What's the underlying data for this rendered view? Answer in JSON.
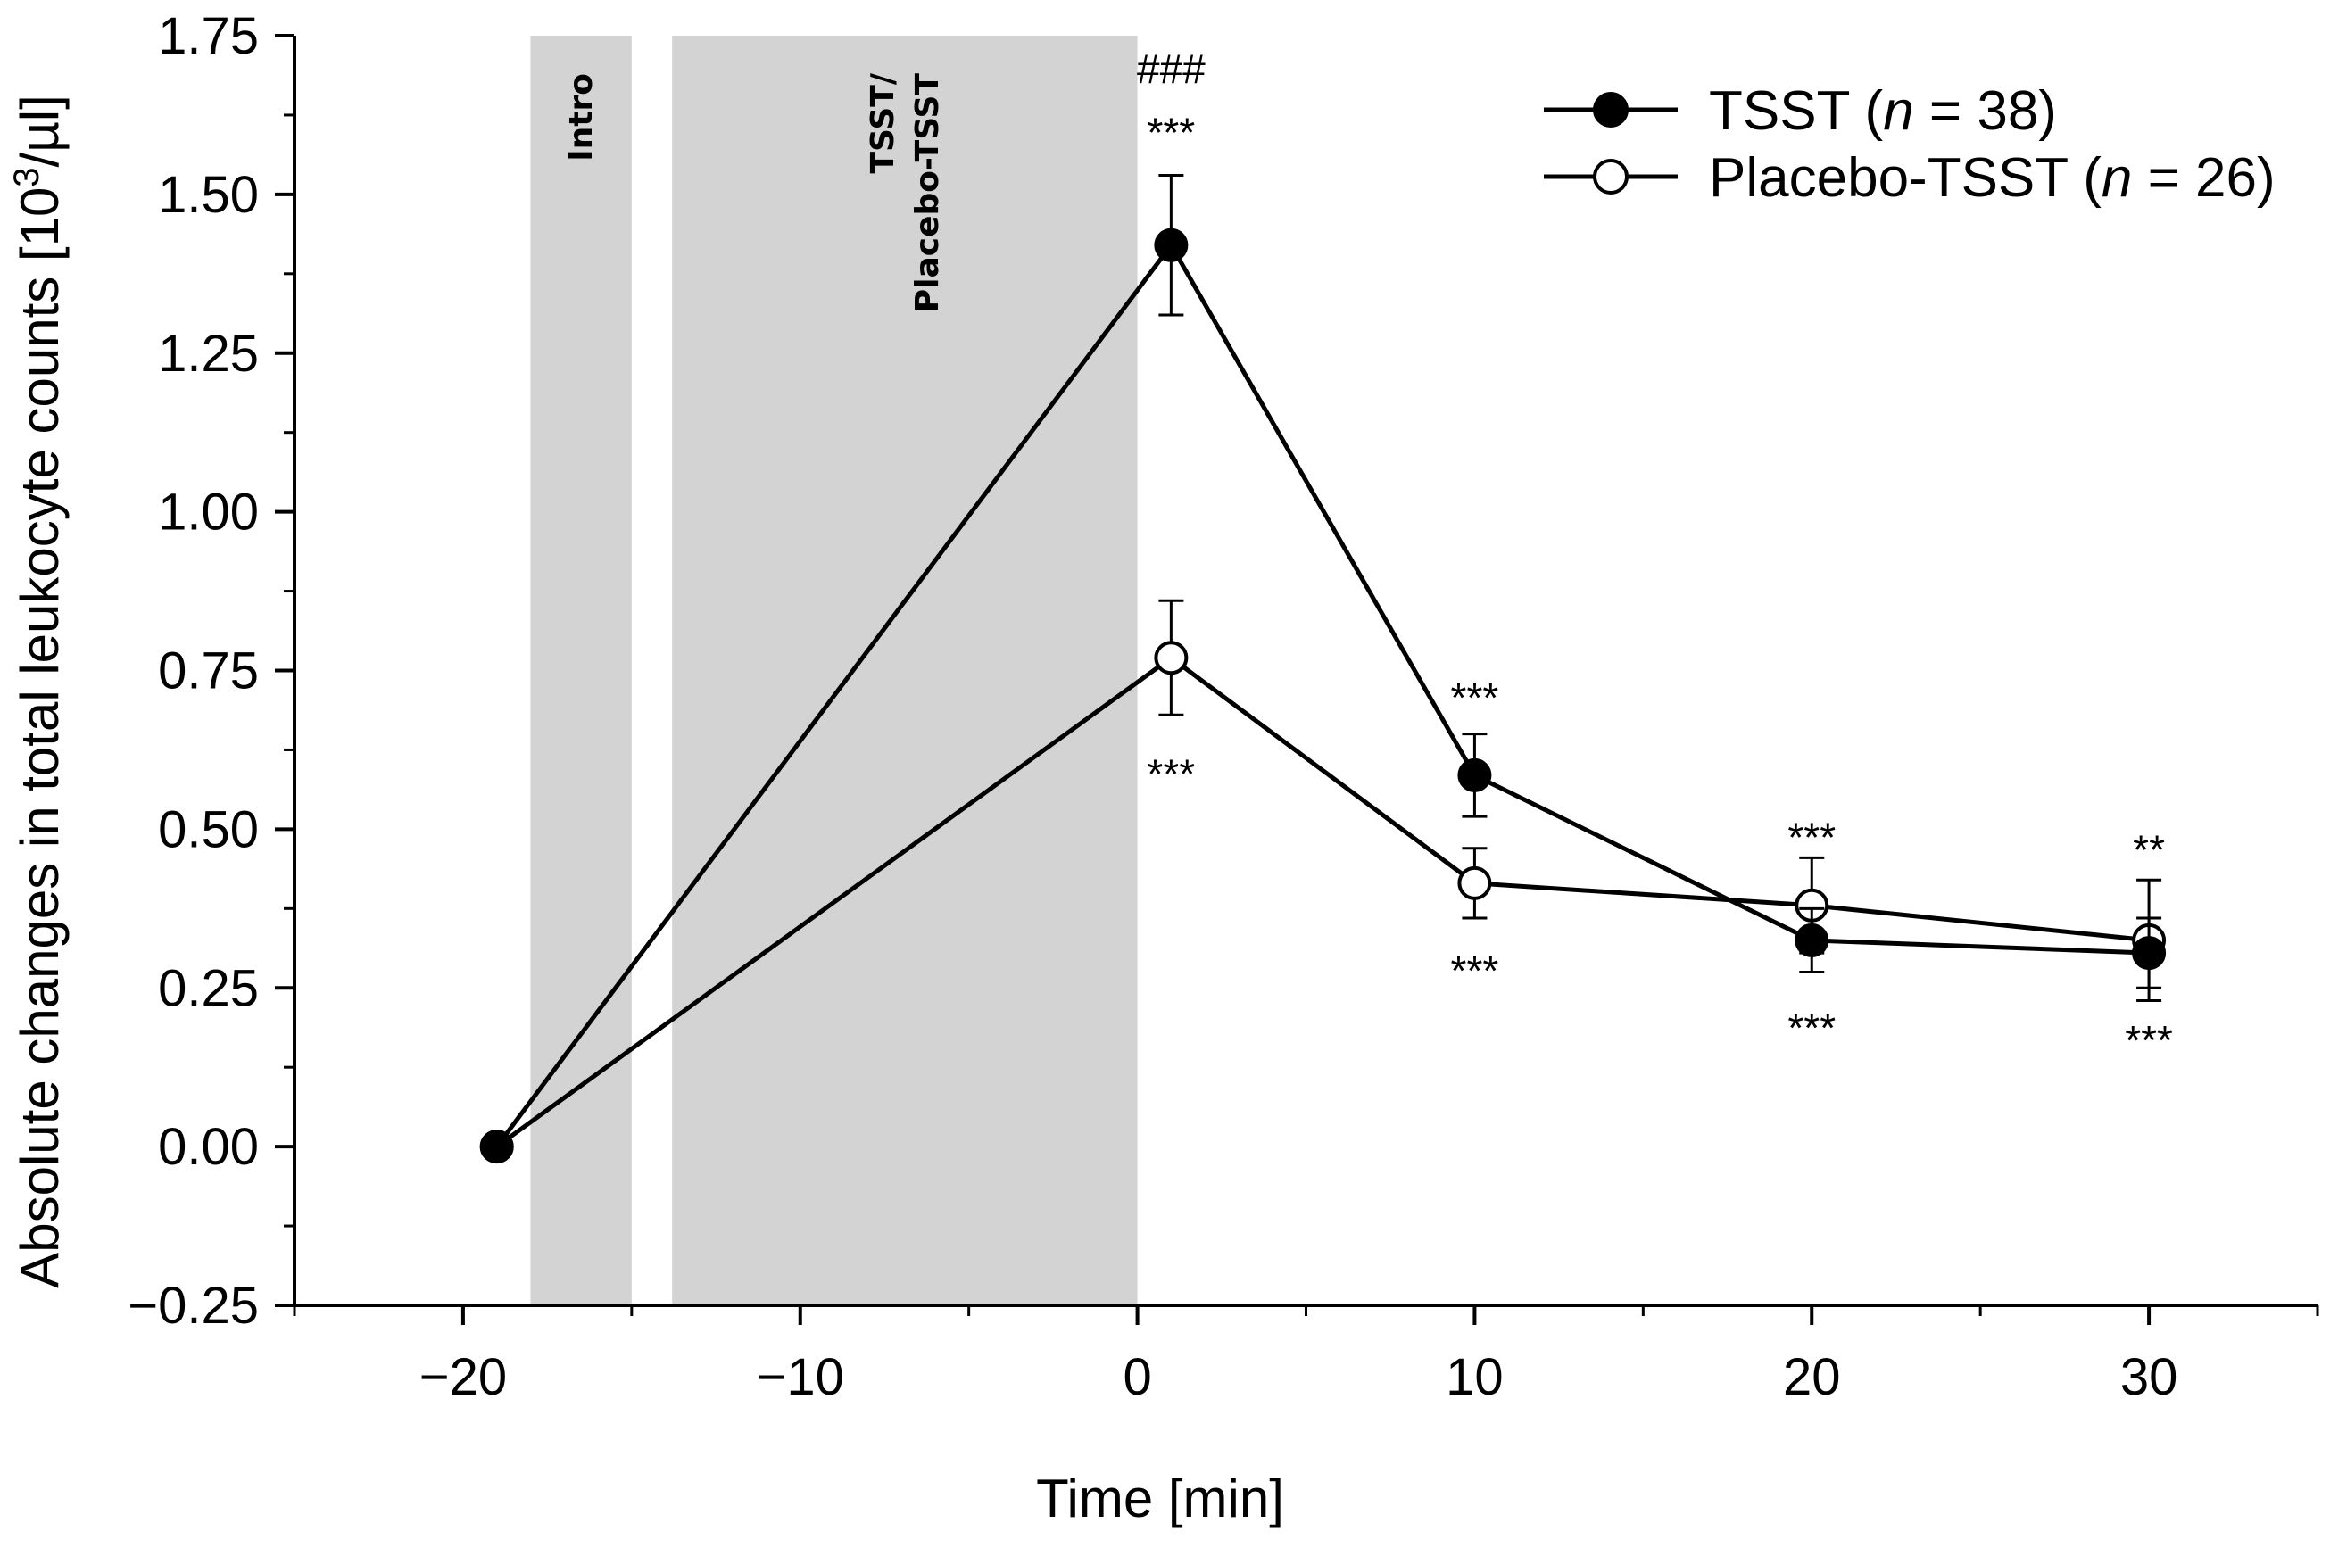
{
  "chart_data": {
    "type": "line",
    "title": "",
    "xlabel": "Time [min]",
    "ylabel_main": "Absolute changes in total leukocyte counts [10",
    "ylabel_sup": "3",
    "ylabel_tail": "/µl]",
    "xlim": [
      -25,
      35
    ],
    "ylim": [
      -0.25,
      1.75
    ],
    "x_ticks": [
      -20,
      -10,
      0,
      10,
      20,
      30
    ],
    "x_tick_labels": [
      "−20",
      "−10",
      "0",
      "10",
      "20",
      "30"
    ],
    "y_ticks": [
      -0.25,
      0,
      0.25,
      0.5,
      0.75,
      1.0,
      1.25,
      1.5,
      1.75
    ],
    "y_tick_labels": [
      "−0.25",
      "0.00",
      "0.25",
      "0.50",
      "0.75",
      "1.00",
      "1.25",
      "1.50",
      "1.75"
    ],
    "shaded_regions": [
      {
        "x0": -18,
        "x1": -15,
        "label_lines": [
          "Intro"
        ]
      },
      {
        "x0": -13.8,
        "x1": 0,
        "label_lines": [
          "TSST/",
          "Placebo-TSST"
        ]
      }
    ],
    "series": [
      {
        "name": "TSST",
        "n_label": "n",
        "n_value": " = 38)",
        "prefix": "TSST (",
        "marker": "filled",
        "x": [
          -19,
          1,
          10,
          20,
          30
        ],
        "values": [
          0.0,
          1.42,
          0.585,
          0.325,
          0.305
        ],
        "errors": [
          0.0,
          0.11,
          0.065,
          0.05,
          0.055
        ]
      },
      {
        "name": "Placebo-TSST",
        "n_label": "n",
        "n_value": " = 26)",
        "prefix": "Placebo-TSST (",
        "marker": "open",
        "x": [
          -19,
          1,
          10,
          20,
          30
        ],
        "values": [
          0.0,
          0.77,
          0.415,
          0.38,
          0.325
        ],
        "errors": [
          0.0,
          0.09,
          0.055,
          0.075,
          0.095
        ]
      }
    ],
    "annotations": [
      {
        "text": "###",
        "x": 1,
        "y": 1.7
      },
      {
        "text": "***",
        "x": 1,
        "y": 1.6
      },
      {
        "text": "***",
        "x": 1,
        "y": 0.59
      },
      {
        "text": "***",
        "x": 10,
        "y": 0.71
      },
      {
        "text": "***",
        "x": 10,
        "y": 0.28
      },
      {
        "text": "***",
        "x": 20,
        "y": 0.49
      },
      {
        "text": "***",
        "x": 20,
        "y": 0.19
      },
      {
        "text": "**",
        "x": 30,
        "y": 0.47
      },
      {
        "text": "***",
        "x": 30,
        "y": 0.17
      }
    ],
    "legend_position": "top-right"
  }
}
